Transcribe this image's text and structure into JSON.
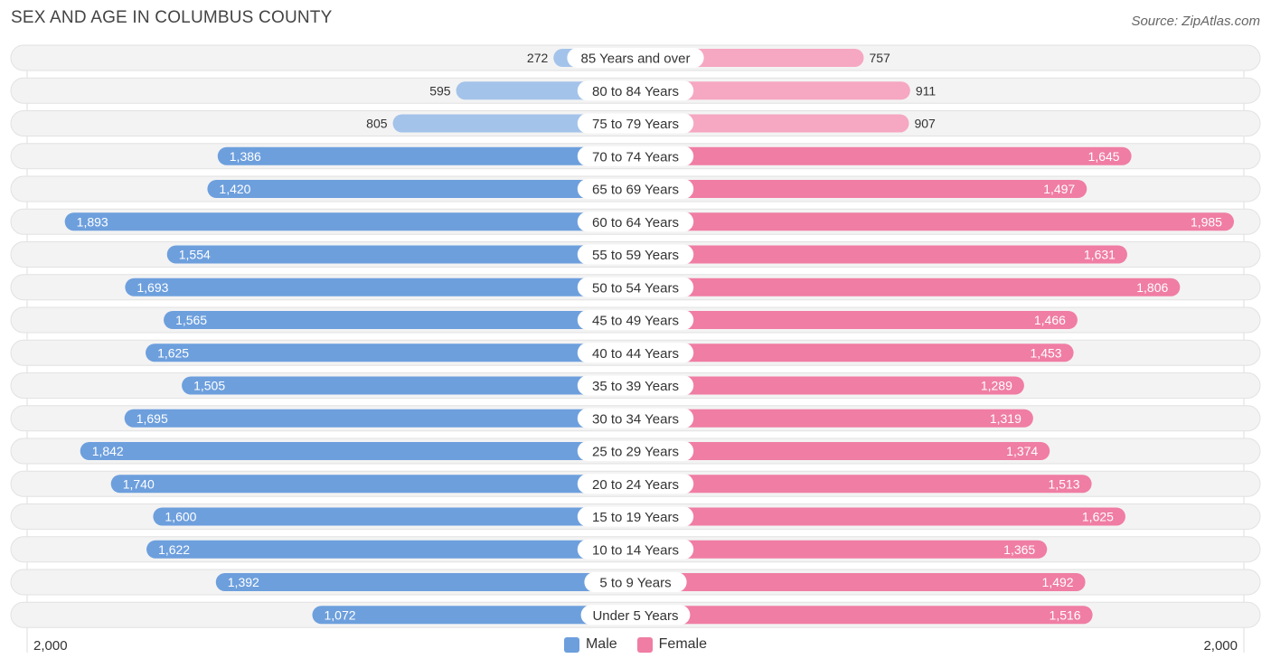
{
  "title": "SEX AND AGE IN COLUMBUS COUNTY",
  "source": "Source: ZipAtlas.com",
  "colors": {
    "male_strong": "#6d9fdd",
    "male_light": "#a4c3ea",
    "female_strong": "#f07da3",
    "female_light": "#f6a7c1",
    "row_bg": "#f2f2f2"
  },
  "chart_data": {
    "type": "bar",
    "orientation": "horizontal-butterfly",
    "title": "SEX AND AGE IN COLUMBUS COUNTY",
    "categories": [
      "85 Years and over",
      "80 to 84 Years",
      "75 to 79 Years",
      "70 to 74 Years",
      "65 to 69 Years",
      "60 to 64 Years",
      "55 to 59 Years",
      "50 to 54 Years",
      "45 to 49 Years",
      "40 to 44 Years",
      "35 to 39 Years",
      "30 to 34 Years",
      "25 to 29 Years",
      "20 to 24 Years",
      "15 to 19 Years",
      "10 to 14 Years",
      "5 to 9 Years",
      "Under 5 Years"
    ],
    "series": [
      {
        "name": "Male",
        "values": [
          272,
          595,
          805,
          1386,
          1420,
          1893,
          1554,
          1693,
          1565,
          1625,
          1505,
          1695,
          1842,
          1740,
          1600,
          1622,
          1392,
          1072
        ],
        "labels": [
          "272",
          "595",
          "805",
          "1,386",
          "1,420",
          "1,893",
          "1,554",
          "1,693",
          "1,565",
          "1,625",
          "1,505",
          "1,695",
          "1,842",
          "1,740",
          "1,600",
          "1,622",
          "1,392",
          "1,072"
        ]
      },
      {
        "name": "Female",
        "values": [
          757,
          911,
          907,
          1645,
          1497,
          1985,
          1631,
          1806,
          1466,
          1453,
          1289,
          1319,
          1374,
          1513,
          1625,
          1365,
          1492,
          1516
        ],
        "labels": [
          "757",
          "911",
          "907",
          "1,645",
          "1,497",
          "1,985",
          "1,631",
          "1,806",
          "1,466",
          "1,453",
          "1,289",
          "1,319",
          "1,374",
          "1,513",
          "1,625",
          "1,365",
          "1,492",
          "1,516"
        ]
      }
    ],
    "xlim": [
      0,
      2000
    ],
    "axis_left_label": "2,000",
    "axis_right_label": "2,000",
    "legend": [
      "Male",
      "Female"
    ],
    "legend_position": "bottom-center"
  }
}
